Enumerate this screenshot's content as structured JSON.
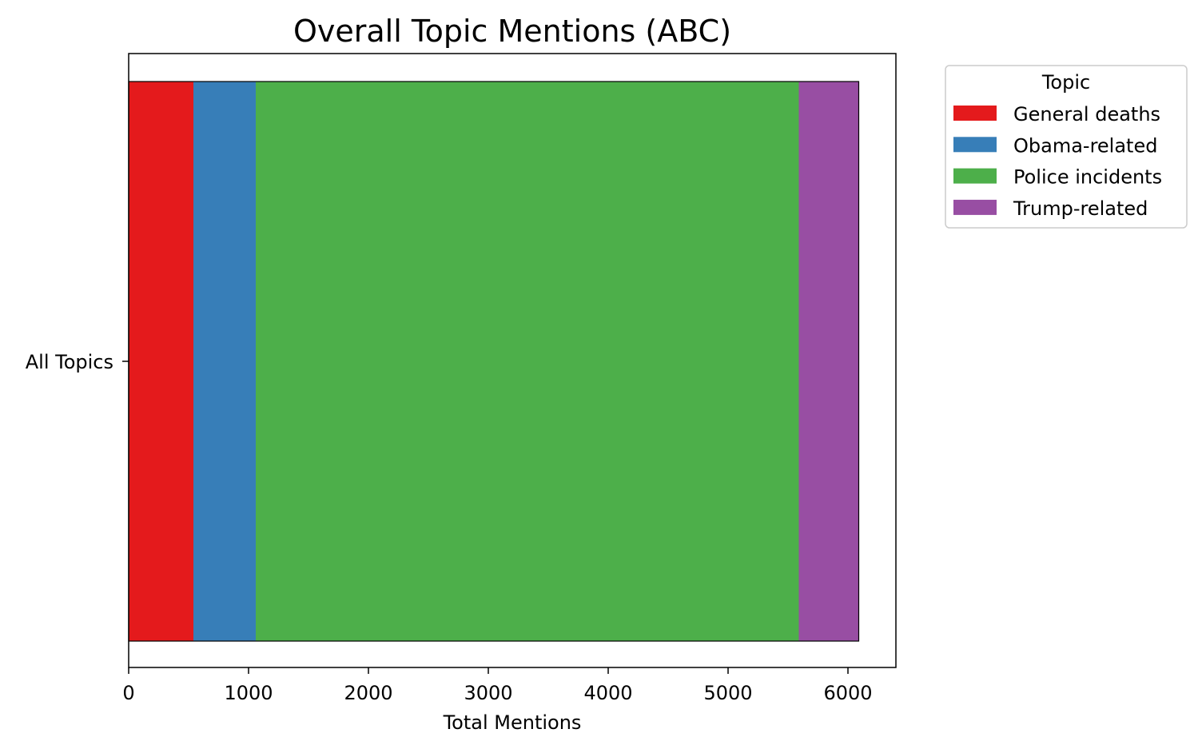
{
  "chart_data": {
    "type": "bar",
    "orientation": "horizontal",
    "stacked": true,
    "title": "Overall Topic Mentions (ABC)",
    "xlabel": "Total Mentions",
    "ylabel": "",
    "categories": [
      "All Topics"
    ],
    "xlim": [
      0,
      6400
    ],
    "xticks": [
      0,
      1000,
      2000,
      3000,
      4000,
      5000,
      6000
    ],
    "grid": false,
    "legend": {
      "title": "Topic",
      "placement": "outside-top-right"
    },
    "series": [
      {
        "name": "General deaths",
        "values": [
          540
        ],
        "color": "#e41a1c"
      },
      {
        "name": "Obama-related",
        "values": [
          520
        ],
        "color": "#377eb8"
      },
      {
        "name": "Police incidents",
        "values": [
          4530
        ],
        "color": "#4daf4a"
      },
      {
        "name": "Trump-related",
        "values": [
          500
        ],
        "color": "#984ea3"
      }
    ]
  }
}
